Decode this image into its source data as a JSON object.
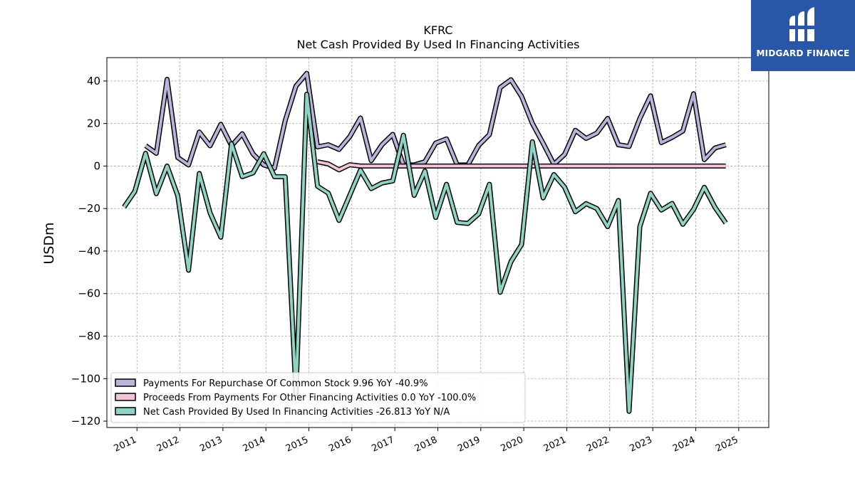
{
  "brand": {
    "name": "MIDGARD FINANCE",
    "color": "#2a56a8",
    "icon": "midgard-logo-icon"
  },
  "chart_data": {
    "type": "line",
    "title": "KFRC",
    "subtitle": "Net Cash Provided By Used In Financing Activities",
    "ylabel": "USDm",
    "xlabel": "",
    "ylim": [
      -123,
      51
    ],
    "xlim": [
      2010.3,
      2025.7
    ],
    "yticks": [
      -120,
      -100,
      -80,
      -60,
      -40,
      -20,
      0,
      20,
      40
    ],
    "ytick_labels": [
      "−120",
      "−100",
      "−80",
      "−60",
      "−40",
      "−20",
      "0",
      "20",
      "40"
    ],
    "xticks": [
      2011,
      2012,
      2013,
      2014,
      2015,
      2016,
      2017,
      2018,
      2019,
      2020,
      2021,
      2022,
      2023,
      2024,
      2025
    ],
    "xtick_labels": [
      "2011",
      "2012",
      "2013",
      "2014",
      "2015",
      "2016",
      "2017",
      "2018",
      "2019",
      "2020",
      "2021",
      "2022",
      "2023",
      "2024",
      "2025"
    ],
    "grid": true,
    "legend_position": "lower-left",
    "series": [
      {
        "name": "Payments For Repurchase Of Common Stock  9.96 YoY -40.9%",
        "color": "#b9b4d9",
        "x": [
          2011.2,
          2011.45,
          2011.7,
          2011.95,
          2012.2,
          2012.45,
          2012.7,
          2012.95,
          2013.2,
          2013.45,
          2013.7,
          2013.95,
          2014.2,
          2014.45,
          2014.7,
          2014.95,
          2015.2,
          2015.45,
          2015.7,
          2015.95,
          2016.2,
          2016.45,
          2016.7,
          2016.95,
          2017.2,
          2017.45,
          2017.7,
          2017.95,
          2018.2,
          2018.45,
          2018.7,
          2018.95,
          2019.2,
          2019.45,
          2019.7,
          2019.95,
          2020.2,
          2020.45,
          2020.7,
          2020.95,
          2021.2,
          2021.45,
          2021.7,
          2021.95,
          2022.2,
          2022.45,
          2022.7,
          2022.95,
          2023.2,
          2023.45,
          2023.7,
          2023.95,
          2024.2,
          2024.45,
          2024.7
        ],
        "values": [
          9.6,
          6.0,
          40.8,
          4.0,
          0.5,
          16.0,
          9.5,
          19.6,
          9.5,
          15.2,
          5.7,
          0.5,
          -1.0,
          21.4,
          37.6,
          43.6,
          9.0,
          10.0,
          7.8,
          13.8,
          22.6,
          2.5,
          10.0,
          14.9,
          0.5,
          0.5,
          2.0,
          10.8,
          12.8,
          0.5,
          0.5,
          9.7,
          14.8,
          36.9,
          40.6,
          32.7,
          20.0,
          10.7,
          0.8,
          5.5,
          16.8,
          13.0,
          15.5,
          22.4,
          10.0,
          9.2,
          22.4,
          33.0,
          11.0,
          13.5,
          16.5,
          34.0,
          3.0,
          8.5,
          9.96
        ]
      },
      {
        "name": "Proceeds From Payments For Other Financing Activities  0.0 YoY -100.0%",
        "color": "#f2c4dc",
        "x": [
          2015.2,
          2015.45,
          2015.7,
          2015.95,
          2016.2,
          2016.45,
          2016.7,
          2016.95,
          2017.2,
          2017.45,
          2017.7,
          2017.95,
          2018.2,
          2018.45,
          2018.7,
          2018.95,
          2019.2,
          2019.45,
          2019.7,
          2019.95,
          2020.2,
          2020.45,
          2020.7,
          2020.95,
          2021.2,
          2021.45,
          2021.7,
          2021.95,
          2022.2,
          2022.45,
          2022.7,
          2022.95,
          2023.2,
          2023.45,
          2023.7,
          2023.95,
          2024.2,
          2024.45,
          2024.7
        ],
        "values": [
          2.0,
          1.0,
          -1.8,
          0.6,
          0.0,
          0.0,
          0.0,
          0.0,
          0.0,
          0.0,
          0.0,
          0.0,
          0.0,
          0.0,
          0.0,
          0.0,
          0.0,
          0.0,
          0.0,
          0.0,
          0.0,
          0.0,
          0.0,
          0.0,
          0.0,
          0.0,
          0.0,
          0.0,
          0.0,
          0.0,
          0.0,
          0.0,
          0.0,
          0.0,
          0.0,
          0.0,
          0.0,
          0.0,
          0.0
        ]
      },
      {
        "name": "Net Cash Provided By Used In Financing Activities  -26.813 YoY N/A",
        "color": "#8fd3c4",
        "x": [
          2010.7,
          2010.95,
          2011.2,
          2011.45,
          2011.7,
          2011.95,
          2012.2,
          2012.45,
          2012.7,
          2012.95,
          2013.2,
          2013.45,
          2013.7,
          2013.95,
          2014.2,
          2014.45,
          2014.7,
          2014.95,
          2015.2,
          2015.45,
          2015.7,
          2015.95,
          2016.2,
          2016.45,
          2016.7,
          2016.95,
          2017.2,
          2017.45,
          2017.7,
          2017.95,
          2018.2,
          2018.45,
          2018.7,
          2018.95,
          2019.2,
          2019.45,
          2019.7,
          2019.95,
          2020.2,
          2020.45,
          2020.7,
          2020.95,
          2021.2,
          2021.45,
          2021.7,
          2021.95,
          2022.2,
          2022.45,
          2022.7,
          2022.95,
          2023.2,
          2023.45,
          2023.7,
          2023.95,
          2024.2,
          2024.45,
          2024.7
        ],
        "values": [
          -19.3,
          -11.9,
          6.0,
          -13.0,
          0.0,
          -14.0,
          -49.0,
          -3.5,
          -22.0,
          -33.5,
          10.5,
          -5.0,
          -3.2,
          5.8,
          -5.0,
          -5.0,
          -107.0,
          33.8,
          -9.5,
          -12.7,
          -25.6,
          -13.8,
          -1.9,
          -10.6,
          -8.0,
          -7.0,
          14.5,
          -13.8,
          -2.3,
          -24.2,
          -8.6,
          -26.5,
          -27.0,
          -22.5,
          -8.6,
          -59.4,
          -45.0,
          -36.9,
          11.4,
          -15.0,
          -4.0,
          -10.0,
          -21.5,
          -17.7,
          -20.0,
          -28.5,
          -16.2,
          -115.4,
          -28.5,
          -12.8,
          -20.7,
          -17.6,
          -27.4,
          -20.4,
          -10.0,
          -19.5,
          -26.813
        ]
      }
    ]
  }
}
